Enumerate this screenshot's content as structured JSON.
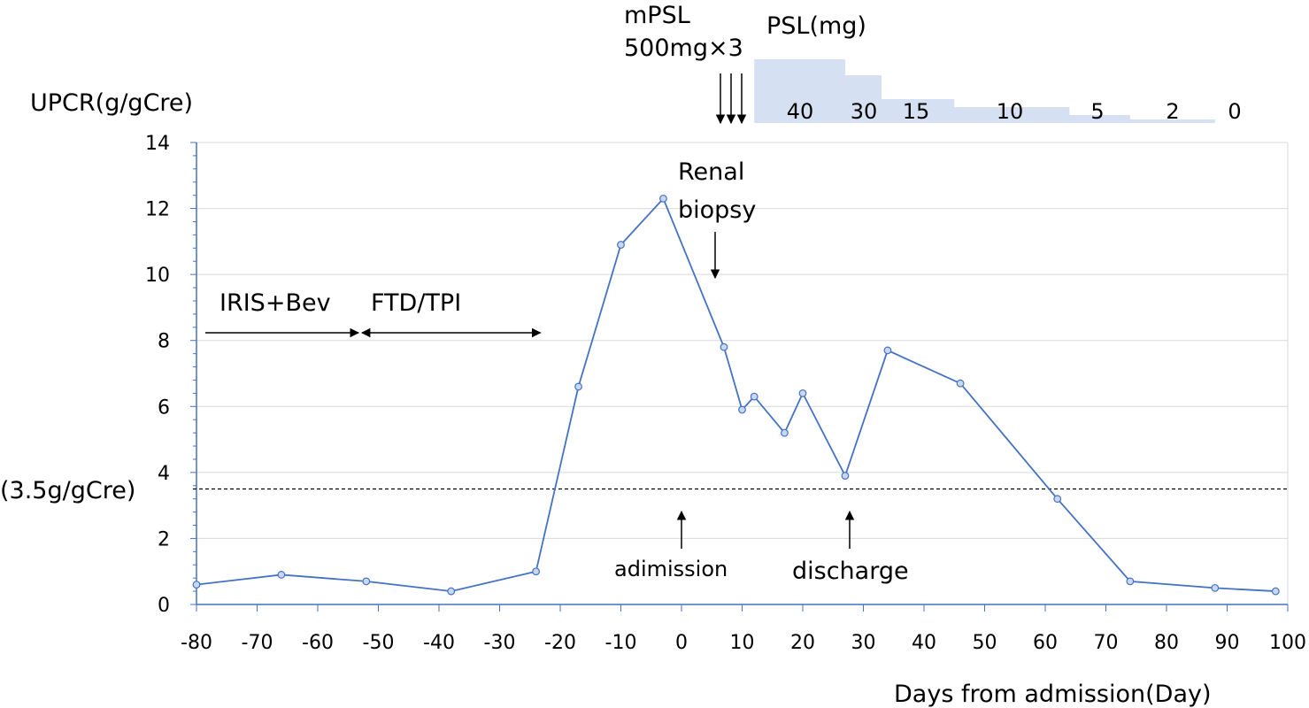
{
  "chart_data": {
    "type": "line",
    "ylabel": "UPCR(g/gCre)",
    "xlabel": "Days from admission(Day)",
    "xlim": [
      -80,
      100
    ],
    "ylim": [
      0,
      14
    ],
    "xticks": [
      "-80",
      "-70",
      "-60",
      "-50",
      "-40",
      "-30",
      "-20",
      "-10",
      "0",
      "10",
      "20",
      "30",
      "40",
      "50",
      "60",
      "70",
      "80",
      "90",
      "100"
    ],
    "yticks": [
      "0",
      "2",
      "4",
      "6",
      "8",
      "10",
      "12",
      "14"
    ],
    "grid": "horizontal",
    "color": "#4472C4",
    "series": [
      {
        "x": [
          -80,
          -66,
          -52,
          -38,
          -24,
          -17,
          -10,
          -3,
          7,
          10,
          12,
          17,
          20,
          27,
          34,
          46,
          62,
          74,
          88,
          98
        ],
        "y": [
          0.6,
          0.9,
          0.7,
          0.4,
          1.0,
          6.6,
          10.9,
          12.3,
          7.8,
          5.9,
          6.3,
          5.2,
          6.4,
          3.9,
          7.7,
          6.7,
          3.2,
          0.7,
          0.5,
          0.4
        ]
      }
    ],
    "threshold": {
      "y": 3.5,
      "label": "(3.5g/gCre)"
    },
    "annotations": {
      "therapy1": {
        "label": "IRIS+Bev",
        "x": [
          -80,
          -53
        ]
      },
      "therapy2": {
        "label": "FTD/TPI",
        "x": [
          -53,
          -23
        ]
      },
      "biopsy_label_1": "Renal",
      "biopsy_label_2": "biopsy",
      "biopsy_x": 6,
      "admission": {
        "label": "adimission",
        "x": 0
      },
      "discharge": {
        "label": "discharge",
        "x": 28
      },
      "mpsl_1": "mPSL",
      "mpsl_2": "500mg×3",
      "mpsl_days": [
        6,
        8,
        10
      ]
    },
    "psl": {
      "label": "PSL(mg)",
      "steps": [
        {
          "value": 40,
          "label": "40",
          "x0": 12,
          "x1": 27
        },
        {
          "value": 30,
          "label": "30",
          "x0": 27,
          "x1": 33
        },
        {
          "value": 15,
          "label": "15",
          "x0": 33,
          "x1": 45
        },
        {
          "value": 10,
          "label": "10",
          "x0": 45,
          "x1": 64
        },
        {
          "value": 5,
          "label": "5",
          "x0": 64,
          "x1": 74
        },
        {
          "value": 2,
          "label": "2",
          "x0": 74,
          "x1": 88
        },
        {
          "value": 0,
          "label": "0",
          "x0": 88,
          "x1": 98
        }
      ],
      "color": "#D6E0F3"
    }
  }
}
